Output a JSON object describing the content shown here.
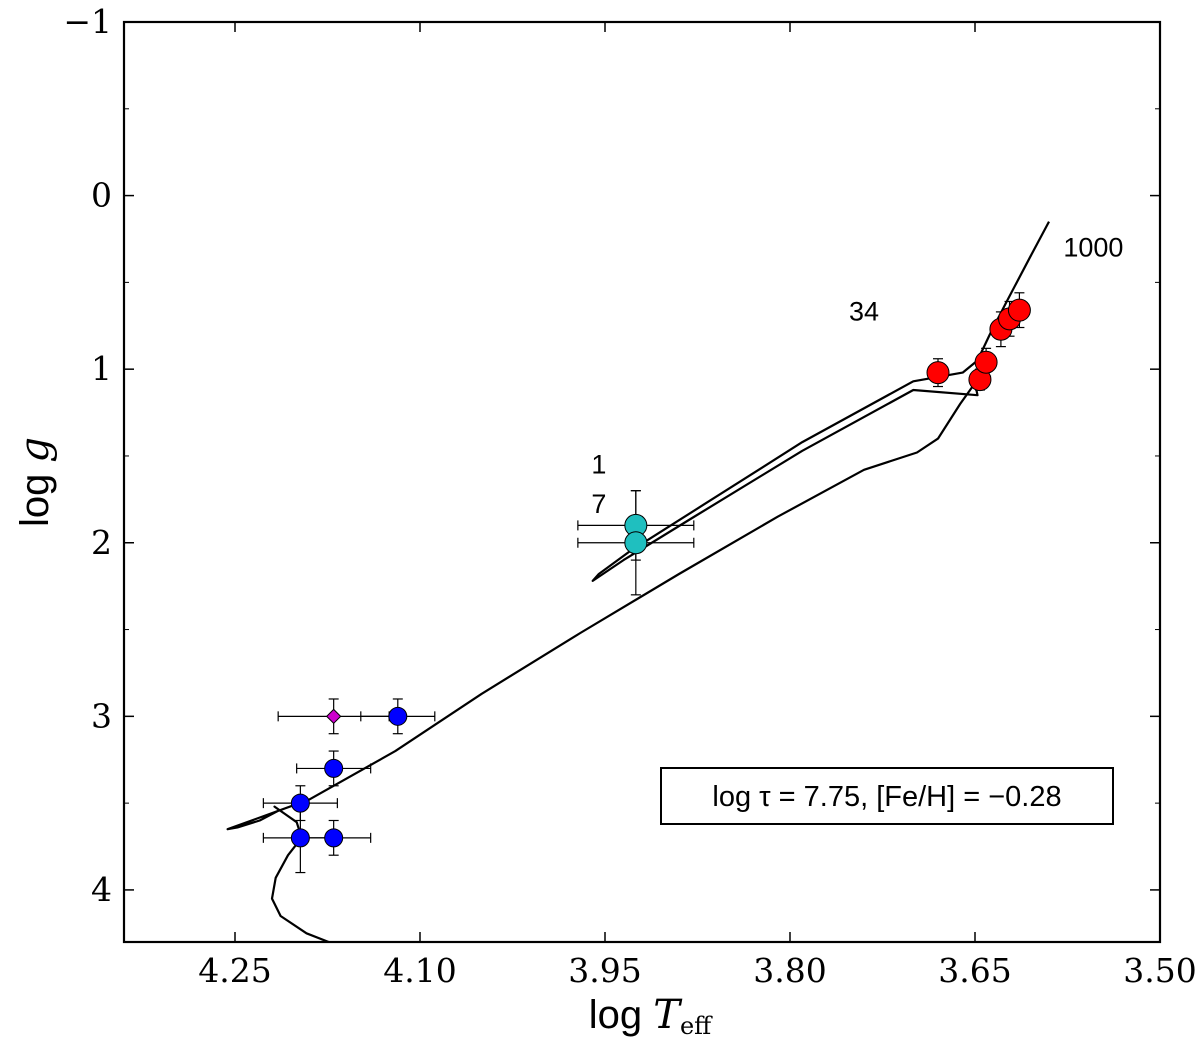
{
  "chart_data": {
    "type": "scatter",
    "title": "",
    "xlabel_main": "log ",
    "xlabel_var": "T",
    "xlabel_sub": "eff",
    "ylabel_main": "log ",
    "ylabel_var": "g",
    "xlim": [
      4.34,
      3.5
    ],
    "ylim": [
      4.3,
      -1.0
    ],
    "xticks": [
      4.25,
      4.1,
      3.95,
      3.8,
      3.65,
      3.5
    ],
    "xtick_labels": [
      "4.25",
      "4.10",
      "3.95",
      "3.80",
      "3.65",
      "3.50"
    ],
    "yticks": [
      -1,
      0,
      1,
      2,
      3,
      4
    ],
    "ytick_labels": [
      "−1",
      "0",
      "1",
      "2",
      "3",
      "4"
    ],
    "legend_text": "log τ = 7.75, [Fe/H] = −0.28",
    "annotations": [
      {
        "text": "1",
        "x": 3.955,
        "y": 1.6
      },
      {
        "text": "7",
        "x": 3.955,
        "y": 1.83
      },
      {
        "text": "34",
        "x": 3.74,
        "y": 0.72
      },
      {
        "text": "1000",
        "x": 3.554,
        "y": 0.35
      }
    ],
    "isochrone": [
      [
        4.174,
        4.3
      ],
      [
        4.192,
        4.25
      ],
      [
        4.213,
        4.15
      ],
      [
        4.22,
        4.05
      ],
      [
        4.217,
        3.93
      ],
      [
        4.207,
        3.8
      ],
      [
        4.196,
        3.7
      ],
      [
        4.2,
        3.61
      ],
      [
        4.21,
        3.56
      ],
      [
        4.218,
        3.52
      ],
      [
        4.214,
        3.54
      ],
      [
        4.23,
        3.6
      ],
      [
        4.248,
        3.64
      ],
      [
        4.256,
        3.65
      ],
      [
        4.19,
        3.48
      ],
      [
        4.12,
        3.2
      ],
      [
        4.05,
        2.87
      ],
      [
        3.97,
        2.52
      ],
      [
        3.89,
        2.18
      ],
      [
        3.81,
        1.85
      ],
      [
        3.74,
        1.58
      ],
      [
        3.697,
        1.48
      ],
      [
        3.68,
        1.4
      ],
      [
        3.662,
        1.2
      ],
      [
        3.65,
        1.08
      ],
      [
        3.648,
        1.15
      ],
      [
        3.7,
        1.12
      ],
      [
        3.79,
        1.47
      ],
      [
        3.88,
        1.86
      ],
      [
        3.935,
        2.1
      ],
      [
        3.96,
        2.22
      ],
      [
        3.955,
        2.18
      ],
      [
        3.93,
        2.05
      ],
      [
        3.87,
        1.78
      ],
      [
        3.79,
        1.42
      ],
      [
        3.7,
        1.07
      ],
      [
        3.66,
        1.02
      ],
      [
        3.648,
        0.95
      ],
      [
        3.638,
        0.8
      ],
      [
        3.625,
        0.62
      ],
      [
        3.605,
        0.35
      ],
      [
        3.59,
        0.15
      ]
    ],
    "series": [
      {
        "name": "blue stars",
        "color": "#0000ff",
        "marker": "circle",
        "points": [
          {
            "x": 4.118,
            "y": 3.0,
            "xerr": 0.03,
            "yerr": 0.1
          },
          {
            "x": 4.17,
            "y": 3.3,
            "xerr": 0.03,
            "yerr": 0.1
          },
          {
            "x": 4.197,
            "y": 3.5,
            "xerr": 0.03,
            "yerr": 0.1
          },
          {
            "x": 4.197,
            "y": 3.7,
            "xerr": 0.03,
            "yerr": 0.2
          },
          {
            "x": 4.17,
            "y": 3.7,
            "xerr": 0.03,
            "yerr": 0.1
          }
        ]
      },
      {
        "name": "magenta star",
        "color": "#cc00cc",
        "marker": "diamond",
        "points": [
          {
            "x": 4.17,
            "y": 3.0,
            "xerr": 0.045,
            "yerr": 0.1
          }
        ]
      },
      {
        "name": "cyan stars",
        "color": "#1fbfbf",
        "marker": "circle",
        "points": [
          {
            "x": 3.925,
            "y": 1.9,
            "xerr": 0.047,
            "yerr": 0.2
          },
          {
            "x": 3.925,
            "y": 2.0,
            "xerr": 0.047,
            "yerr": 0.3
          }
        ]
      },
      {
        "name": "red stars",
        "color": "#ff0000",
        "marker": "circle",
        "points": [
          {
            "x": 3.68,
            "y": 1.02,
            "xerr": 0.0,
            "yerr": 0.08
          },
          {
            "x": 3.646,
            "y": 1.06,
            "xerr": 0.0,
            "yerr": 0.06
          },
          {
            "x": 3.641,
            "y": 0.96,
            "xerr": 0.0,
            "yerr": 0.08
          },
          {
            "x": 3.629,
            "y": 0.77,
            "xerr": 0.0,
            "yerr": 0.1
          },
          {
            "x": 3.622,
            "y": 0.71,
            "xerr": 0.0,
            "yerr": 0.1
          },
          {
            "x": 3.614,
            "y": 0.66,
            "xerr": 0.0,
            "yerr": 0.1
          }
        ]
      }
    ]
  }
}
